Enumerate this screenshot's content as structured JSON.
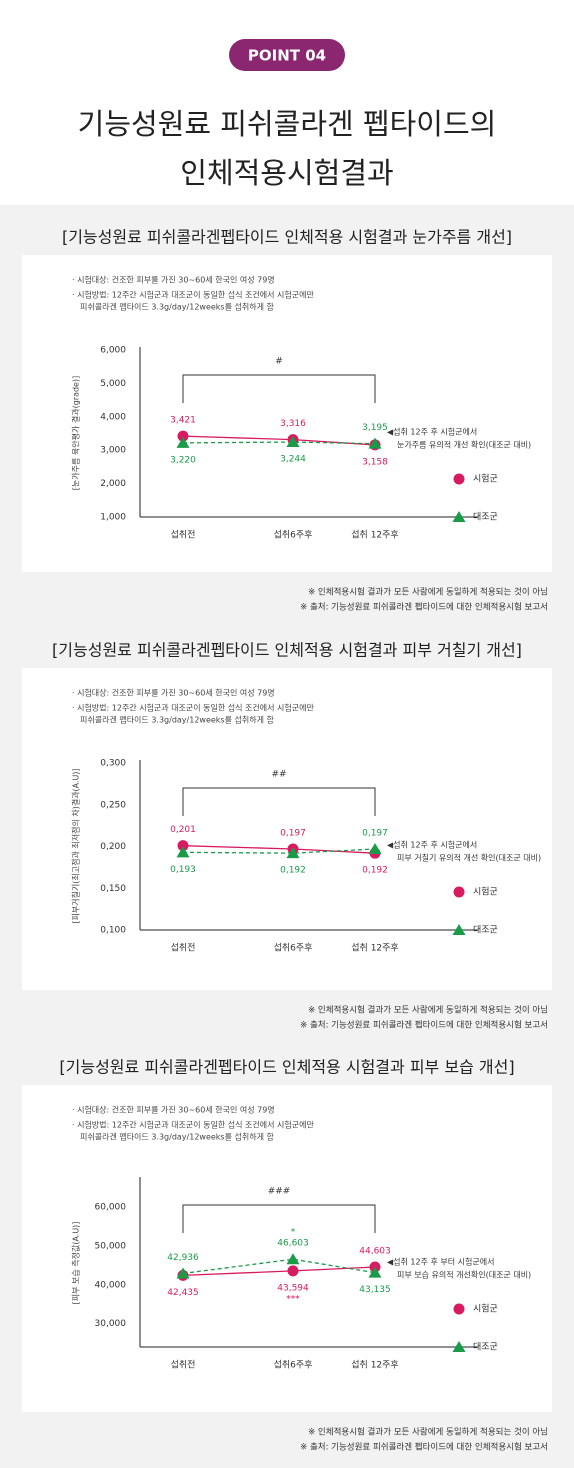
{
  "header": {
    "badge": "POINT 04",
    "title_lines": [
      "기능성원료 피쉬콜라겐 펩타이드의",
      "인체적용시험결과"
    ]
  },
  "chart_data": [
    {
      "type": "line",
      "title": "[기능성원료 피쉬콜라겐펩타이드 인체적용 시험결과 눈가주름 개선]",
      "notes": [
        "· 시험대상: 건조한 피부를 가진 30~60세 한국인 여성 79명",
        "· 시험방법: 12주간 시험군과 대조군이 동일한 섭식 조건에서 시험군에만",
        "피쉬콜라겐 펩타이드 3.3g/day/12weeks를 섭취하게 함"
      ],
      "y_label": "[눈가주름 육안평가 결과(grade)]",
      "categories": [
        "섭취전",
        "섭취6주후",
        "섭취 12주후"
      ],
      "series": [
        {
          "name": "시험군",
          "color": "#d81b60",
          "marker": "circle",
          "line_style": "solid",
          "values": [
            3421,
            3316,
            3158
          ],
          "value_labels": [
            "3,421",
            "3,316",
            "3,158"
          ]
        },
        {
          "name": "대조군",
          "color": "#1a9b48",
          "marker": "triangle",
          "line_style": "dashed",
          "values": [
            3220,
            3244,
            3195
          ],
          "value_labels": [
            "3,220",
            "3,244",
            "3,195"
          ]
        }
      ],
      "ylim": [
        1000,
        6000
      ],
      "yticks": [
        {
          "value": 1000,
          "label": "1,000"
        },
        {
          "value": 2000,
          "label": "2,000"
        },
        {
          "value": 3000,
          "label": "3,000"
        },
        {
          "value": 4000,
          "label": "4,000"
        },
        {
          "value": 5000,
          "label": "5,000"
        },
        {
          "value": 6000,
          "label": "6,000"
        }
      ],
      "significance": "#",
      "annotation": [
        "◀섭취 12주 후  시험군에서",
        "눈가주름 유의적 개선 확인(대조군 대비)"
      ],
      "footnotes": [
        "※ 인체적용시험 결과가 모든 사람에게 동일하게 적용되는 것이 아님",
        "※ 출처: 기능성원료 피쉬콜라겐 펩타이드에 대한 인체적용시험 보고서"
      ]
    },
    {
      "type": "line",
      "title": "[기능성원료 피쉬콜라겐펩타이드 인체적용 시험결과 피부 거칠기 개선]",
      "notes": [
        "· 시험대상: 건조한 피부를 가진 30~60세 한국인 여성 79명",
        "· 시험방법: 12주간 시험군과 대조군이 동일한 섭식 조건에서 시험군에만",
        "피쉬콜라겐 펩타이드 3.3g/day/12weeks를 섭취하게 함"
      ],
      "y_label": "[피부거칠기(최고점과 최저점의 차)결과(A.U)]",
      "categories": [
        "섭취전",
        "섭취6주후",
        "섭취 12주후"
      ],
      "series": [
        {
          "name": "시험군",
          "color": "#d81b60",
          "marker": "circle",
          "line_style": "solid",
          "values": [
            0.201,
            0.197,
            0.192
          ],
          "value_labels": [
            "0,201",
            "0,197",
            "0,192"
          ]
        },
        {
          "name": "대조군",
          "color": "#1a9b48",
          "marker": "triangle",
          "line_style": "dashed",
          "values": [
            0.193,
            0.192,
            0.197
          ],
          "value_labels": [
            "0,193",
            "0,192",
            "0,197"
          ]
        }
      ],
      "ylim": [
        0.1,
        0.3
      ],
      "yticks": [
        {
          "value": 0.1,
          "label": "0,100"
        },
        {
          "value": 0.15,
          "label": "0,150"
        },
        {
          "value": 0.2,
          "label": "0,200"
        },
        {
          "value": 0.25,
          "label": "0,250"
        },
        {
          "value": 0.3,
          "label": "0,300"
        }
      ],
      "significance": "##",
      "annotation": [
        "◀섭취 12주 후  시험군에서",
        "피부 거칠기 유의적 개선 확인(대조군 대비)"
      ],
      "footnotes": [
        "※ 인체적용시험 결과가 모든 사람에게 동일하게 적용되는 것이 아님",
        "※ 출처: 기능성원료 피쉬콜라겐 펩타이드에 대한 인체적용시험 보고서"
      ]
    },
    {
      "type": "line",
      "title": "[기능성원료 피쉬콜라겐펩타이드 인체적용 시험결과 피부 보습 개선]",
      "notes": [
        "· 시험대상: 건조한 피부를 가진 30~60세 한국인 여성 79명",
        "· 시험방법: 12주간 시험군과 대조군이 동일한 섭식 조건에서 시험군에만",
        "피쉬콜라겐 펩타이드 3.3g/day/12weeks를 섭취하게 함"
      ],
      "y_label": "[피부 보습 측정값(A.U)]",
      "categories": [
        "섭취전",
        "섭취6주후",
        "섭취 12주후"
      ],
      "series": [
        {
          "name": "시험군",
          "color": "#d81b60",
          "marker": "circle",
          "line_style": "solid",
          "values": [
            42435,
            43594,
            44603
          ],
          "value_labels": [
            "42,435",
            "43,594",
            "44,603"
          ],
          "point_notes": [
            null,
            "***",
            null
          ]
        },
        {
          "name": "대조군",
          "color": "#1a9b48",
          "marker": "triangle",
          "line_style": "dashed",
          "values": [
            42936,
            46603,
            43135
          ],
          "value_labels": [
            "42,936",
            "46,603",
            "43,135"
          ],
          "point_notes": [
            null,
            "*",
            null
          ]
        }
      ],
      "ylim": [
        24000,
        67000
      ],
      "yticks": [
        {
          "value": 30000,
          "label": "30,000"
        },
        {
          "value": 40000,
          "label": "40,000"
        },
        {
          "value": 50000,
          "label": "50,000"
        },
        {
          "value": 60000,
          "label": "60,000"
        }
      ],
      "significance": "###",
      "annotation": [
        "◀섭취 12주 후 부터 시험군에서",
        "피부 보습 유의적 개선확인(대조군 대비)"
      ],
      "footnotes": [
        "※ 인체적용시험 결과가 모든 사람에게 동일하게 적용되는 것이 아님",
        "※ 출처: 기능성원료 피쉬콜라겐 펩타이드에 대한 인체적용시험 보고서"
      ]
    }
  ]
}
